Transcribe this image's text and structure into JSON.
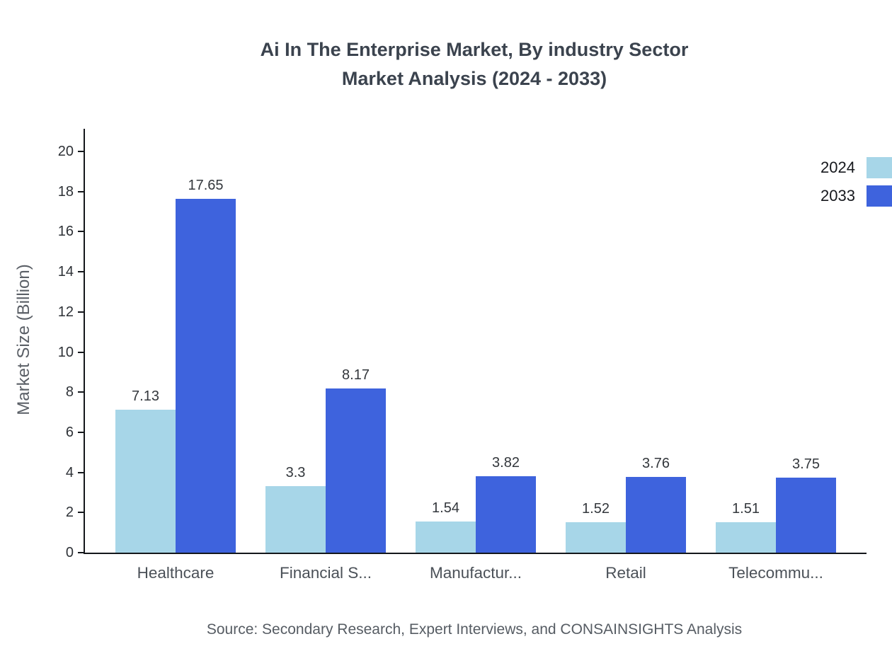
{
  "page": {
    "title_line1": "Ai In The Enterprise Market, By industry Sector",
    "title_line2": "Market Analysis (2024 - 2033)",
    "source": "Source: Secondary Research, Expert Interviews, and CONSAINSIGHTS Analysis"
  },
  "chart_data": {
    "type": "bar",
    "title": "Ai In The Enterprise Market, By industry Sector Market Analysis (2024 - 2033)",
    "categories": [
      "Healthcare",
      "Financial S...",
      "Manufactur...",
      "Retail",
      "Telecommu..."
    ],
    "series": [
      {
        "name": "2024",
        "color": "#a7d6e8",
        "values": [
          7.13,
          3.3,
          1.54,
          1.52,
          1.51
        ]
      },
      {
        "name": "2033",
        "color": "#3e63dd",
        "values": [
          17.65,
          8.17,
          3.82,
          3.76,
          3.75
        ]
      }
    ],
    "xlabel": "",
    "ylabel": "Market Size (Billion)",
    "ylim": [
      0,
      20
    ],
    "yticks": [
      0,
      2,
      4,
      6,
      8,
      10,
      12,
      14,
      16,
      18,
      20
    ],
    "grid": false,
    "legend_position": "top-right",
    "value_labels": true
  }
}
